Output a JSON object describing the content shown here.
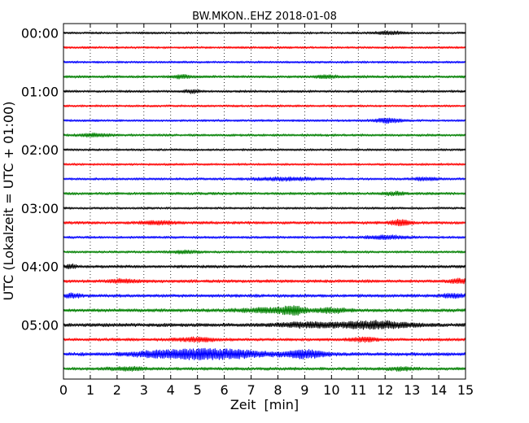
{
  "chart_data": {
    "type": "line",
    "title": "BW.MKON..EHZ 2018-01-08",
    "xlabel": "Zeit  [min]",
    "ylabel": "UTC (Lokalzeit = UTC + 01:00)",
    "xlim": [
      0,
      15
    ],
    "x_ticks": [
      0,
      1,
      2,
      3,
      4,
      5,
      6,
      7,
      8,
      9,
      10,
      11,
      12,
      13,
      14,
      15
    ],
    "y_tick_labels": [
      "00:00",
      "01:00",
      "02:00",
      "03:00",
      "04:00",
      "05:00"
    ],
    "traces_per_hour": 4,
    "trace_minutes": 15,
    "grid": "x-dotted",
    "trace_colors": [
      "#000000",
      "#ff0000",
      "#0000ff",
      "#008000"
    ],
    "series": [
      {
        "start": "00:00",
        "amplitude": 1.0,
        "events": [
          {
            "t": 12.2,
            "amp": 1.6,
            "width": 0.5
          }
        ]
      },
      {
        "start": "00:15",
        "amplitude": 1.0,
        "events": []
      },
      {
        "start": "00:30",
        "amplitude": 1.0,
        "events": []
      },
      {
        "start": "00:45",
        "amplitude": 1.2,
        "events": [
          {
            "t": 4.4,
            "amp": 1.6,
            "width": 0.3
          },
          {
            "t": 9.8,
            "amp": 1.4,
            "width": 0.4
          }
        ]
      },
      {
        "start": "01:00",
        "amplitude": 1.1,
        "events": [
          {
            "t": 4.8,
            "amp": 1.5,
            "width": 0.3
          }
        ]
      },
      {
        "start": "01:15",
        "amplitude": 1.0,
        "events": []
      },
      {
        "start": "01:30",
        "amplitude": 1.0,
        "events": [
          {
            "t": 12.1,
            "amp": 2.4,
            "width": 0.5
          }
        ]
      },
      {
        "start": "01:45",
        "amplitude": 1.1,
        "events": [
          {
            "t": 1.2,
            "amp": 1.5,
            "width": 0.5
          }
        ]
      },
      {
        "start": "02:00",
        "amplitude": 1.0,
        "events": []
      },
      {
        "start": "02:15",
        "amplitude": 1.0,
        "events": []
      },
      {
        "start": "02:30",
        "amplitude": 1.1,
        "events": [
          {
            "t": 8.3,
            "amp": 1.5,
            "width": 1.2
          },
          {
            "t": 13.5,
            "amp": 1.5,
            "width": 0.5
          }
        ]
      },
      {
        "start": "02:45",
        "amplitude": 1.2,
        "events": [
          {
            "t": 12.3,
            "amp": 1.5,
            "width": 0.4
          }
        ]
      },
      {
        "start": "03:00",
        "amplitude": 1.0,
        "events": []
      },
      {
        "start": "03:15",
        "amplitude": 1.3,
        "events": [
          {
            "t": 3.5,
            "amp": 1.8,
            "width": 0.6
          },
          {
            "t": 12.6,
            "amp": 3.8,
            "width": 0.35
          }
        ]
      },
      {
        "start": "03:30",
        "amplitude": 1.1,
        "events": [
          {
            "t": 12.0,
            "amp": 2.0,
            "width": 0.7
          }
        ]
      },
      {
        "start": "03:45",
        "amplitude": 1.1,
        "events": [
          {
            "t": 4.5,
            "amp": 1.4,
            "width": 0.5
          }
        ]
      },
      {
        "start": "04:00",
        "amplitude": 1.3,
        "events": [
          {
            "t": 0.3,
            "amp": 2.0,
            "width": 0.2
          }
        ]
      },
      {
        "start": "04:15",
        "amplitude": 1.4,
        "events": [
          {
            "t": 2.2,
            "amp": 1.6,
            "width": 0.6
          },
          {
            "t": 14.8,
            "amp": 2.0,
            "width": 0.4
          }
        ]
      },
      {
        "start": "04:30",
        "amplitude": 1.4,
        "events": [
          {
            "t": 0.3,
            "amp": 2.0,
            "width": 0.3
          },
          {
            "t": 14.6,
            "amp": 1.7,
            "width": 0.5
          }
        ]
      },
      {
        "start": "04:45",
        "amplitude": 1.5,
        "events": [
          {
            "t": 7.8,
            "amp": 2.2,
            "width": 1.2
          },
          {
            "t": 8.6,
            "amp": 3.5,
            "width": 0.4
          },
          {
            "t": 10.0,
            "amp": 2.2,
            "width": 0.6
          }
        ]
      },
      {
        "start": "05:00",
        "amplitude": 1.6,
        "events": [
          {
            "t": 9.0,
            "amp": 2.2,
            "width": 1.2
          },
          {
            "t": 11.6,
            "amp": 3.8,
            "width": 1.3
          }
        ]
      },
      {
        "start": "05:15",
        "amplitude": 1.3,
        "events": [
          {
            "t": 5.0,
            "amp": 1.8,
            "width": 0.8
          },
          {
            "t": 11.2,
            "amp": 2.2,
            "width": 0.5
          }
        ]
      },
      {
        "start": "05:30",
        "amplitude": 1.5,
        "events": [
          {
            "t": 5.6,
            "amp": 5.5,
            "width": 1.8
          },
          {
            "t": 9.0,
            "amp": 4.0,
            "width": 0.8
          },
          {
            "t": 3.5,
            "amp": 2.2,
            "width": 1.2
          }
        ]
      },
      {
        "start": "05:45",
        "amplitude": 1.4,
        "events": [
          {
            "t": 2.4,
            "amp": 1.7,
            "width": 0.6
          },
          {
            "t": 12.6,
            "amp": 1.5,
            "width": 0.5
          }
        ]
      }
    ]
  }
}
